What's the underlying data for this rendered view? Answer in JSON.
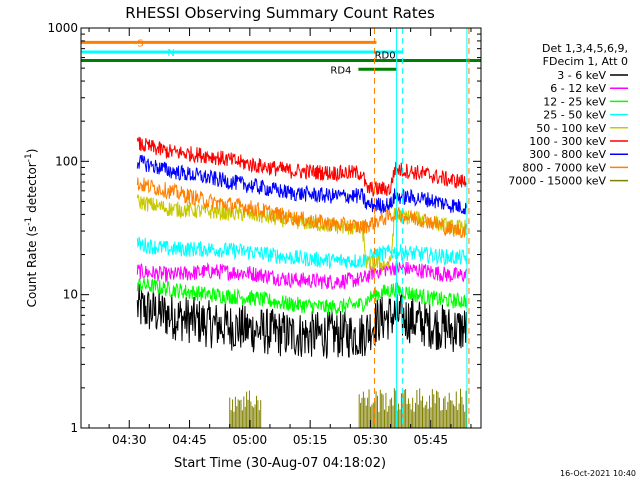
{
  "chart_data": {
    "type": "line",
    "title": "RHESSI Observing Summary Count Rates",
    "xlabel": "Start Time (30-Aug-07 04:18:02)",
    "ylabel_main": "Count Rate (s",
    "ylabel_sup": "-1",
    "ylabel_mid": " detector",
    "ylabel_end": ")",
    "yscale": "log",
    "ylim": [
      1,
      1000
    ],
    "y_ticks": [
      {
        "value": 1,
        "label": "1"
      },
      {
        "value": 10,
        "label": "10"
      },
      {
        "value": 100,
        "label": "100"
      },
      {
        "value": 1000,
        "label": "1000"
      }
    ],
    "xlim_minutes": [
      18.0,
      57.5
    ],
    "x_ticks": [
      {
        "minute": 30,
        "label": "04:30"
      },
      {
        "minute": 45,
        "label": "04:45"
      },
      {
        "minute": 60,
        "label": "05:00"
      },
      {
        "minute": 75,
        "label": "05:15"
      },
      {
        "minute": 90,
        "label": "05:30"
      },
      {
        "minute": 105,
        "label": "05:45"
      }
    ],
    "legend_header": [
      "Det 1,3,4,5,6,9,",
      "FDecim 1, Att 0"
    ],
    "series": [
      {
        "name": "3 - 6 keV",
        "color": "#000000",
        "points": [
          [
            32,
            8
          ],
          [
            40,
            7
          ],
          [
            50,
            6
          ],
          [
            60,
            5.5
          ],
          [
            70,
            5
          ],
          [
            80,
            5
          ],
          [
            88,
            5
          ],
          [
            92,
            6.5
          ],
          [
            96,
            7
          ],
          [
            104,
            6
          ],
          [
            110,
            5.5
          ],
          [
            114,
            5.5
          ]
        ]
      },
      {
        "name": "6 - 12 keV",
        "color": "#ff00ff",
        "points": [
          [
            32,
            15
          ],
          [
            40,
            14
          ],
          [
            50,
            15
          ],
          [
            60,
            14.5
          ],
          [
            70,
            13
          ],
          [
            80,
            12.5
          ],
          [
            88,
            13
          ],
          [
            91,
            15
          ],
          [
            96,
            16
          ],
          [
            104,
            15
          ],
          [
            110,
            14
          ],
          [
            114,
            14
          ]
        ]
      },
      {
        "name": "12 - 25 keV",
        "color": "#00ff00",
        "points": [
          [
            32,
            12
          ],
          [
            40,
            11
          ],
          [
            50,
            10
          ],
          [
            60,
            9.5
          ],
          [
            70,
            8.5
          ],
          [
            80,
            8
          ],
          [
            88,
            8.5
          ],
          [
            91,
            10
          ],
          [
            96,
            11
          ],
          [
            104,
            9.5
          ],
          [
            110,
            9
          ],
          [
            114,
            9
          ]
        ]
      },
      {
        "name": "25 - 50 keV",
        "color": "#00ffff",
        "points": [
          [
            32,
            24
          ],
          [
            40,
            22
          ],
          [
            50,
            22
          ],
          [
            60,
            21
          ],
          [
            70,
            19
          ],
          [
            80,
            18
          ],
          [
            88,
            18
          ],
          [
            91,
            20
          ],
          [
            96,
            21
          ],
          [
            104,
            20
          ],
          [
            110,
            19
          ],
          [
            114,
            19
          ]
        ]
      },
      {
        "name": "50 - 100 keV",
        "color": "#c8c800",
        "points": [
          [
            32,
            50
          ],
          [
            40,
            44
          ],
          [
            50,
            42
          ],
          [
            60,
            40
          ],
          [
            70,
            36
          ],
          [
            80,
            33
          ],
          [
            88,
            31
          ],
          [
            89,
            17
          ],
          [
            95,
            17
          ],
          [
            96,
            40
          ],
          [
            104,
            36
          ],
          [
            110,
            32
          ],
          [
            114,
            32
          ]
        ]
      },
      {
        "name": "100 - 300 keV",
        "color": "#ff0000",
        "points": [
          [
            32,
            135
          ],
          [
            40,
            118
          ],
          [
            50,
            110
          ],
          [
            60,
            95
          ],
          [
            70,
            85
          ],
          [
            80,
            82
          ],
          [
            88,
            82
          ],
          [
            89,
            62
          ],
          [
            95,
            62
          ],
          [
            96,
            88
          ],
          [
            104,
            80
          ],
          [
            110,
            72
          ],
          [
            114,
            70
          ]
        ]
      },
      {
        "name": "300 - 800 keV",
        "color": "#0000ff",
        "points": [
          [
            32,
            100
          ],
          [
            40,
            85
          ],
          [
            50,
            75
          ],
          [
            60,
            66
          ],
          [
            70,
            58
          ],
          [
            80,
            55
          ],
          [
            88,
            55
          ],
          [
            89,
            47
          ],
          [
            95,
            47
          ],
          [
            96,
            55
          ],
          [
            104,
            52
          ],
          [
            110,
            47
          ],
          [
            114,
            45
          ]
        ]
      },
      {
        "name": "800 - 7000 keV",
        "color": "#ff8000",
        "points": [
          [
            32,
            68
          ],
          [
            40,
            60
          ],
          [
            50,
            50
          ],
          [
            60,
            45
          ],
          [
            70,
            38
          ],
          [
            80,
            34
          ],
          [
            88,
            32
          ],
          [
            92,
            36
          ],
          [
            96,
            40
          ],
          [
            104,
            36
          ],
          [
            110,
            31
          ],
          [
            114,
            30
          ]
        ]
      },
      {
        "name": "7000 - 15000 keV",
        "color": "#808000",
        "points": [
          [
            55,
            1.8
          ],
          [
            70,
            1.5
          ],
          [
            85,
            1.4
          ],
          [
            95,
            1.8
          ],
          [
            105,
            1.6
          ],
          [
            114,
            1.2
          ]
        ]
      }
    ],
    "flag_bars": [
      {
        "label": "S",
        "color": "#ff8000",
        "x_start": 18.0,
        "x_end": 31.5,
        "y": 780
      },
      {
        "label": "N",
        "color": "#00ffff",
        "x_start": 18.0,
        "x_end": 38.0,
        "y": 660
      },
      {
        "label": "RD0",
        "color": "#008000",
        "x_start": 18.0,
        "x_end": 57.5,
        "y": 570
      },
      {
        "label": "RD4",
        "color": "#008000",
        "x_start": 87.0,
        "x_end": 96.5,
        "y": 490
      }
    ],
    "vertical_markers": [
      {
        "minute": 31.0,
        "color": "#ff8000",
        "style": "dashed"
      },
      {
        "minute": 38.0,
        "color": "#00ffff",
        "style": "dashed"
      },
      {
        "minute": 96.5,
        "color": "#00ffff",
        "style": "solid"
      },
      {
        "minute": 114.5,
        "color": "#ff8000",
        "style": "dashed"
      },
      {
        "minute": 114.0,
        "color": "#00ffff",
        "style": "solid"
      }
    ],
    "footer_date": "16-Oct-2021 10:40"
  }
}
